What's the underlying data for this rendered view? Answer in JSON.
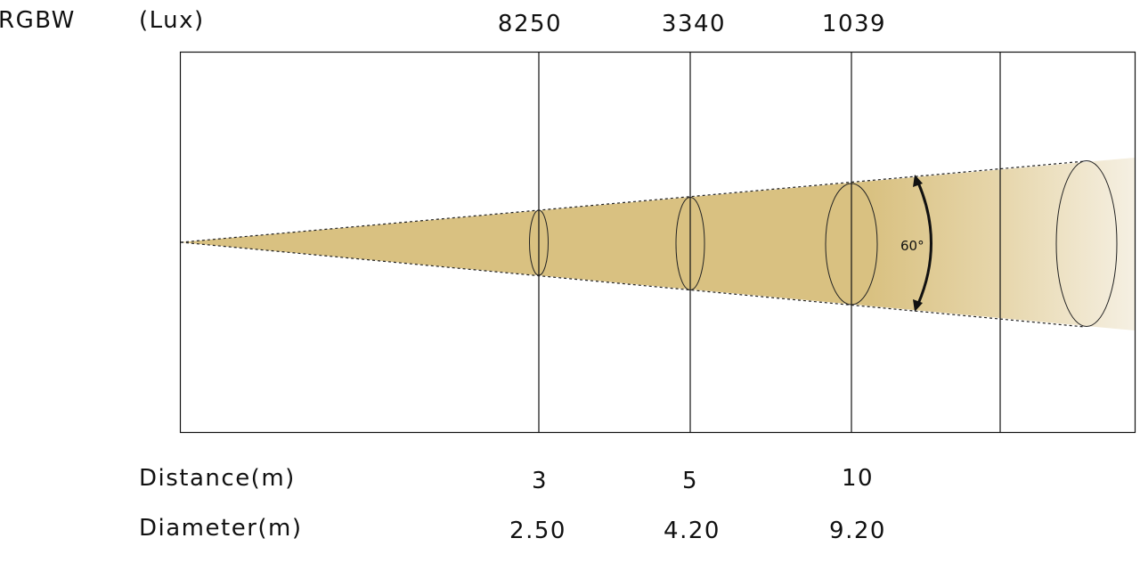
{
  "product": "RGBW",
  "unit_label": "(Lux)",
  "beam_angle": "60°",
  "row_labels": {
    "distance": "Distance(m)",
    "diameter": "Diameter(m)"
  },
  "measurements": [
    {
      "lux": "8250",
      "distance": "3",
      "diameter": "2.50"
    },
    {
      "lux": "3340",
      "distance": "5",
      "diameter": "4.20"
    },
    {
      "lux": "1039",
      "distance": "10",
      "diameter": "9.20"
    }
  ],
  "colors": {
    "beam": "#d9c181",
    "frame": "#111111"
  }
}
